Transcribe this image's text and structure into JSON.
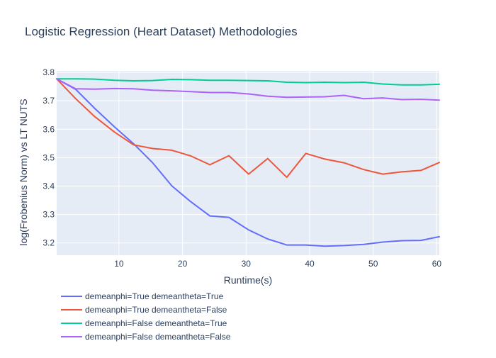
{
  "chart_data": {
    "type": "line",
    "title": "Logistic Regression (Heart Dataset) Methodologies",
    "xlabel": "Runtime(s)",
    "ylabel": "log(Frobenius Norm) vs LT NUTS",
    "xlim": [
      0.2,
      60.4
    ],
    "ylim": [
      3.157,
      3.805
    ],
    "xticks": [
      10,
      20,
      30,
      40,
      50,
      60
    ],
    "yticks": [
      3.2,
      3.3,
      3.4,
      3.5,
      3.6,
      3.7,
      3.8
    ],
    "grid": true,
    "legend_position": "bottom-left",
    "colors": {
      "background": "#E5ECF6",
      "grid": "#FFFFFF",
      "text": "#2a3f5f"
    },
    "series": [
      {
        "name": "demeanphi=True demeantheta=True",
        "color": "#636EFA",
        "x": [
          0.2,
          3.2,
          6.2,
          9.3,
          12.3,
          15.3,
          18.3,
          21.3,
          24.3,
          27.3,
          30.4,
          33.4,
          36.4,
          39.4,
          42.4,
          45.4,
          48.5,
          51.5,
          54.5,
          57.5,
          60.4
        ],
        "y": [
          3.777,
          3.74,
          3.673,
          3.608,
          3.549,
          3.482,
          3.401,
          3.345,
          3.295,
          3.29,
          3.246,
          3.214,
          3.193,
          3.193,
          3.189,
          3.191,
          3.195,
          3.203,
          3.208,
          3.209,
          3.222
        ]
      },
      {
        "name": "demeanphi=True demeantheta=False",
        "color": "#EF553B",
        "x": [
          0.2,
          3.2,
          6.2,
          9.3,
          12.3,
          15.3,
          18.3,
          21.3,
          24.3,
          27.3,
          30.4,
          33.4,
          36.4,
          39.4,
          42.4,
          45.4,
          48.5,
          51.5,
          54.5,
          57.5,
          60.4
        ],
        "y": [
          3.777,
          3.707,
          3.644,
          3.59,
          3.545,
          3.532,
          3.526,
          3.506,
          3.475,
          3.507,
          3.442,
          3.497,
          3.431,
          3.515,
          3.495,
          3.482,
          3.458,
          3.442,
          3.45,
          3.455,
          3.483
        ]
      },
      {
        "name": "demeanphi=False demeantheta=True",
        "color": "#00CC96",
        "x": [
          0.2,
          3.2,
          6.2,
          9.3,
          12.3,
          15.3,
          18.3,
          21.3,
          24.3,
          27.3,
          30.4,
          33.4,
          36.4,
          39.4,
          42.4,
          45.4,
          48.5,
          51.5,
          54.5,
          57.5,
          60.4
        ],
        "y": [
          3.777,
          3.777,
          3.776,
          3.772,
          3.77,
          3.771,
          3.775,
          3.774,
          3.772,
          3.772,
          3.771,
          3.77,
          3.765,
          3.764,
          3.765,
          3.764,
          3.765,
          3.759,
          3.756,
          3.756,
          3.758
        ]
      },
      {
        "name": "demeanphi=False demeantheta=False",
        "color": "#AB63FA",
        "x": [
          0.2,
          3.2,
          6.2,
          9.3,
          12.3,
          15.3,
          18.3,
          21.3,
          24.3,
          27.3,
          30.4,
          33.4,
          36.4,
          39.4,
          42.4,
          45.4,
          48.5,
          51.5,
          54.5,
          57.5,
          60.4
        ],
        "y": [
          3.777,
          3.742,
          3.741,
          3.743,
          3.742,
          3.737,
          3.735,
          3.732,
          3.729,
          3.729,
          3.724,
          3.716,
          3.712,
          3.713,
          3.714,
          3.719,
          3.707,
          3.71,
          3.704,
          3.705,
          3.702
        ]
      }
    ]
  }
}
